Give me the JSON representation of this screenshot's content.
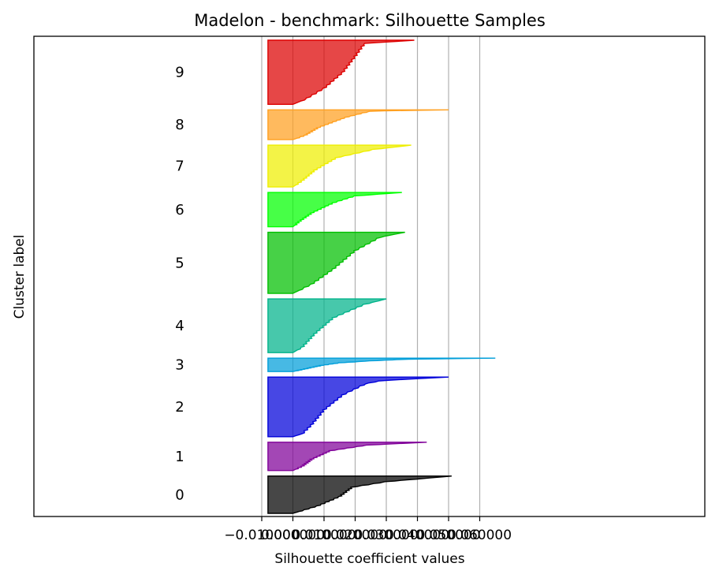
{
  "chart_data": {
    "type": "area",
    "title": "Madelon - benchmark: Silhouette Samples",
    "xlabel": "Silhouette coefficient values",
    "ylabel": "Cluster label",
    "xlim": [
      -0.1,
      0.6
    ],
    "xticks": [
      {
        "value": -0.01,
        "label": "−0.010000"
      },
      {
        "value": 0.0,
        "label": "0.000000"
      },
      {
        "value": 0.01,
        "label": "0.010000"
      },
      {
        "value": 0.02,
        "label": "0.020000"
      },
      {
        "value": 0.03,
        "label": "0.030000"
      },
      {
        "value": 0.04,
        "label": "0.040000"
      },
      {
        "value": 0.05,
        "label": "0.050000"
      },
      {
        "value": 0.06,
        "label": "0.060000"
      }
    ],
    "grid": "vertical",
    "clusters": [
      {
        "label": "0",
        "color": "#000000",
        "size": 50,
        "profile": [
          [
            0,
            0.051
          ],
          [
            0.15,
            0.03
          ],
          [
            0.3,
            0.019
          ],
          [
            0.55,
            0.015
          ],
          [
            0.8,
            0.008
          ],
          [
            1,
            0.0
          ]
        ]
      },
      {
        "label": "1",
        "color": "#800099",
        "size": 38,
        "profile": [
          [
            0,
            0.043
          ],
          [
            0.1,
            0.024
          ],
          [
            0.3,
            0.012
          ],
          [
            0.6,
            0.006
          ],
          [
            0.85,
            0.003
          ],
          [
            1,
            0.0
          ]
        ]
      },
      {
        "label": "2",
        "color": "#0000d9",
        "size": 80,
        "profile": [
          [
            0,
            0.05
          ],
          [
            0.06,
            0.028
          ],
          [
            0.12,
            0.023
          ],
          [
            0.3,
            0.016
          ],
          [
            0.55,
            0.01
          ],
          [
            0.8,
            0.006
          ],
          [
            0.95,
            0.003
          ],
          [
            1,
            0.0
          ]
        ]
      },
      {
        "label": "3",
        "color": "#009ed9",
        "size": 18,
        "profile": [
          [
            0,
            0.065
          ],
          [
            0.08,
            0.037
          ],
          [
            0.2,
            0.025
          ],
          [
            0.35,
            0.015
          ],
          [
            0.55,
            0.009
          ],
          [
            0.75,
            0.005
          ],
          [
            1,
            0.0
          ]
        ]
      },
      {
        "label": "4",
        "color": "#00b38a",
        "size": 72,
        "profile": [
          [
            0,
            0.03
          ],
          [
            0.1,
            0.023
          ],
          [
            0.35,
            0.013
          ],
          [
            0.65,
            0.007
          ],
          [
            0.9,
            0.003
          ],
          [
            1,
            0.0
          ]
        ]
      },
      {
        "label": "5",
        "color": "#00bf00",
        "size": 82,
        "profile": [
          [
            0,
            0.036
          ],
          [
            0.08,
            0.028
          ],
          [
            0.3,
            0.02
          ],
          [
            0.6,
            0.013
          ],
          [
            0.85,
            0.006
          ],
          [
            1,
            0.0
          ]
        ]
      },
      {
        "label": "6",
        "color": "#00ff00",
        "size": 46,
        "profile": [
          [
            0,
            0.035
          ],
          [
            0.1,
            0.02
          ],
          [
            0.3,
            0.013
          ],
          [
            0.6,
            0.006
          ],
          [
            0.85,
            0.002
          ],
          [
            1,
            0.0
          ]
        ]
      },
      {
        "label": "7",
        "color": "#eeee00",
        "size": 56,
        "profile": [
          [
            0,
            0.038
          ],
          [
            0.1,
            0.026
          ],
          [
            0.3,
            0.014
          ],
          [
            0.6,
            0.007
          ],
          [
            0.85,
            0.003
          ],
          [
            1,
            0.0
          ]
        ]
      },
      {
        "label": "8",
        "color": "#ffa020",
        "size": 40,
        "profile": [
          [
            0,
            0.05
          ],
          [
            0.04,
            0.025
          ],
          [
            0.25,
            0.017
          ],
          [
            0.6,
            0.008
          ],
          [
            0.85,
            0.004
          ],
          [
            1,
            0.0
          ]
        ]
      },
      {
        "label": "9",
        "color": "#dd0000",
        "size": 86,
        "profile": [
          [
            0,
            0.039
          ],
          [
            0.05,
            0.023
          ],
          [
            0.25,
            0.02
          ],
          [
            0.5,
            0.016
          ],
          [
            0.75,
            0.01
          ],
          [
            0.92,
            0.004
          ],
          [
            1,
            0.0
          ]
        ]
      }
    ]
  }
}
